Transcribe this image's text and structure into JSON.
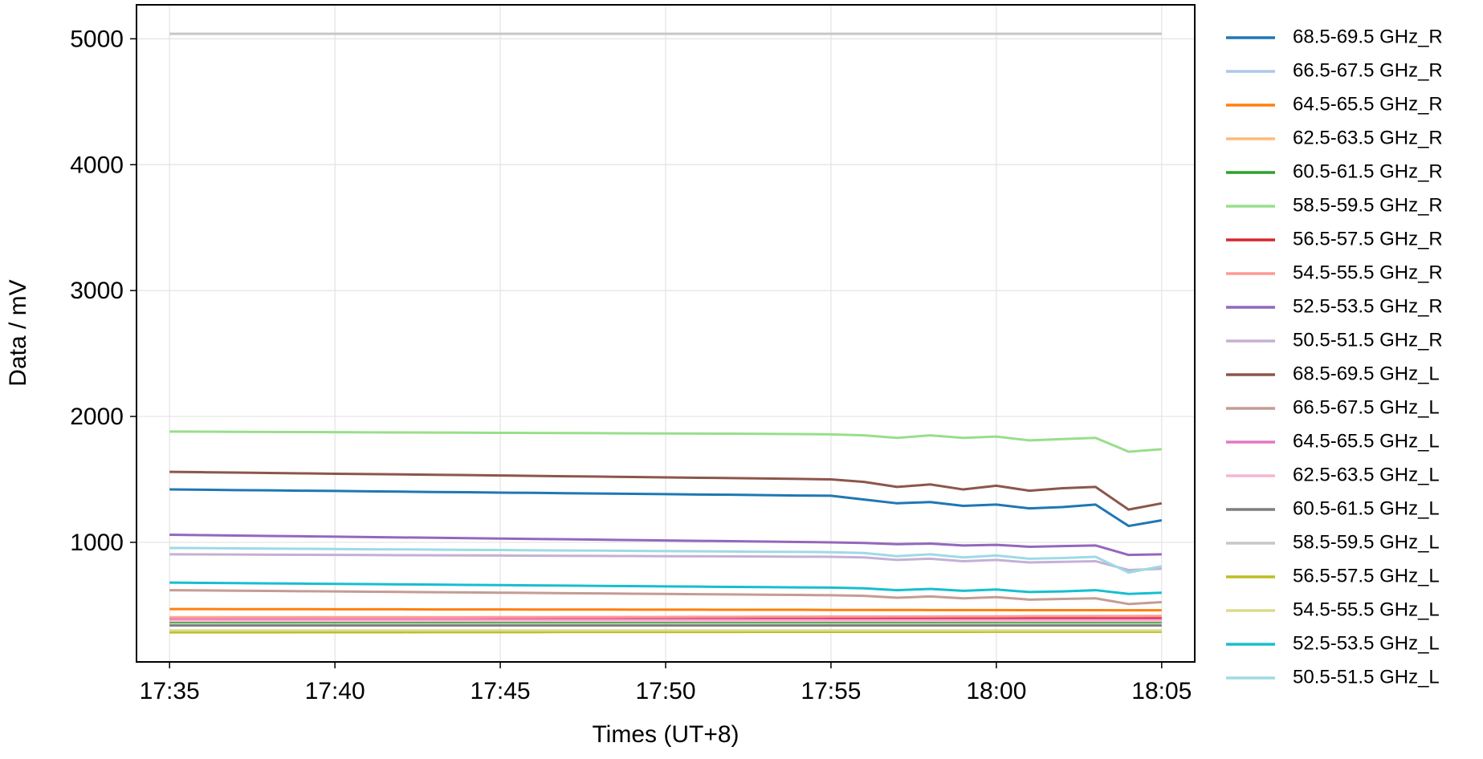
{
  "chart_data": {
    "type": "line",
    "x_label": "Times (UT+8)",
    "y_label": "Data / mV",
    "x": [
      "17:35",
      "17:36",
      "17:37",
      "17:38",
      "17:39",
      "17:40",
      "17:41",
      "17:42",
      "17:43",
      "17:44",
      "17:45",
      "17:46",
      "17:47",
      "17:48",
      "17:49",
      "17:50",
      "17:51",
      "17:52",
      "17:53",
      "17:54",
      "17:55",
      "17:56",
      "17:57",
      "17:58",
      "17:59",
      "18:00",
      "18:01",
      "18:02",
      "18:03",
      "18:04",
      "18:05"
    ],
    "xlim": [
      "17:34",
      "18:06"
    ],
    "xticks": [
      "17:35",
      "17:40",
      "17:45",
      "17:50",
      "17:55",
      "18:00",
      "18:05"
    ],
    "ylim": [
      50,
      5270
    ],
    "yticks": [
      1000,
      2000,
      3000,
      4000,
      5000
    ],
    "grid": true,
    "legend": "outside-right",
    "series": [
      {
        "name": "68.5-69.5 GHz_R",
        "color": "#1f77b4",
        "values": [
          1420,
          1418,
          1415,
          1413,
          1410,
          1408,
          1405,
          1403,
          1400,
          1398,
          1395,
          1393,
          1390,
          1388,
          1385,
          1383,
          1380,
          1378,
          1375,
          1372,
          1370,
          1340,
          1310,
          1320,
          1290,
          1300,
          1270,
          1280,
          1300,
          1130,
          1175
        ]
      },
      {
        "name": "66.5-67.5 GHz_R",
        "color": "#aec7e8",
        "values": [
          380,
          380,
          380,
          380,
          380,
          380,
          380,
          380,
          380,
          380,
          380,
          380,
          380,
          380,
          380,
          380,
          380,
          380,
          380,
          380,
          380,
          380,
          380,
          380,
          380,
          380,
          380,
          380,
          380,
          380,
          380
        ]
      },
      {
        "name": "64.5-65.5 GHz_R",
        "color": "#ff7f0e",
        "values": [
          470,
          470,
          469,
          469,
          469,
          468,
          468,
          468,
          467,
          467,
          467,
          466,
          466,
          466,
          465,
          465,
          465,
          464,
          464,
          464,
          463,
          463,
          463,
          462,
          462,
          462,
          461,
          461,
          461,
          460,
          460
        ]
      },
      {
        "name": "62.5-63.5 GHz_R",
        "color": "#ffbb78",
        "values": [
          405,
          405,
          405,
          405,
          405,
          405,
          405,
          405,
          405,
          405,
          405,
          405,
          405,
          405,
          405,
          405,
          405,
          405,
          405,
          405,
          405,
          405,
          405,
          405,
          405,
          405,
          405,
          405,
          405,
          405,
          405
        ]
      },
      {
        "name": "60.5-61.5 GHz_R",
        "color": "#2ca02c",
        "values": [
          365,
          365,
          365,
          365,
          365,
          365,
          365,
          365,
          365,
          365,
          365,
          365,
          365,
          365,
          365,
          365,
          365,
          365,
          365,
          365,
          365,
          365,
          365,
          365,
          365,
          365,
          365,
          365,
          365,
          365,
          365
        ]
      },
      {
        "name": "58.5-59.5 GHz_R",
        "color": "#98df8a",
        "values": [
          1880,
          1879,
          1878,
          1877,
          1876,
          1875,
          1874,
          1873,
          1872,
          1871,
          1870,
          1869,
          1868,
          1867,
          1866,
          1865,
          1864,
          1863,
          1862,
          1860,
          1858,
          1850,
          1830,
          1850,
          1830,
          1840,
          1810,
          1820,
          1830,
          1720,
          1740
        ]
      },
      {
        "name": "56.5-57.5 GHz_R",
        "color": "#d62728",
        "values": [
          395,
          395,
          395,
          395,
          395,
          395,
          395,
          395,
          395,
          395,
          395,
          395,
          395,
          395,
          395,
          395,
          395,
          395,
          395,
          395,
          395,
          395,
          395,
          395,
          395,
          395,
          395,
          395,
          395,
          395,
          395
        ]
      },
      {
        "name": "54.5-55.5 GHz_R",
        "color": "#ff9896",
        "values": [
          400,
          400,
          401,
          401,
          402,
          402,
          403,
          403,
          404,
          404,
          405,
          405,
          406,
          406,
          407,
          407,
          408,
          408,
          409,
          409,
          410,
          410,
          411,
          411,
          412,
          412,
          413,
          413,
          414,
          414,
          415
        ]
      },
      {
        "name": "52.5-53.5 GHz_R",
        "color": "#9467bd",
        "values": [
          1060,
          1057,
          1054,
          1051,
          1048,
          1045,
          1042,
          1039,
          1036,
          1033,
          1030,
          1027,
          1024,
          1021,
          1018,
          1015,
          1012,
          1009,
          1006,
          1003,
          1000,
          995,
          985,
          990,
          975,
          980,
          965,
          970,
          975,
          900,
          905
        ]
      },
      {
        "name": "50.5-51.5 GHz_R",
        "color": "#c5b0d5",
        "values": [
          905,
          904,
          903,
          902,
          901,
          900,
          899,
          898,
          897,
          896,
          895,
          894,
          893,
          892,
          891,
          890,
          889,
          888,
          887,
          886,
          885,
          880,
          860,
          870,
          850,
          860,
          840,
          845,
          850,
          780,
          790
        ]
      },
      {
        "name": "68.5-69.5 GHz_L",
        "color": "#8c564b",
        "values": [
          1560,
          1557,
          1554,
          1551,
          1548,
          1545,
          1542,
          1540,
          1537,
          1534,
          1531,
          1528,
          1525,
          1522,
          1519,
          1516,
          1513,
          1510,
          1507,
          1504,
          1500,
          1480,
          1440,
          1460,
          1420,
          1450,
          1410,
          1430,
          1440,
          1260,
          1310
        ]
      },
      {
        "name": "66.5-67.5 GHz_L",
        "color": "#c49c94",
        "values": [
          620,
          618,
          616,
          614,
          612,
          610,
          608,
          606,
          604,
          602,
          600,
          598,
          596,
          594,
          592,
          590,
          588,
          586,
          584,
          582,
          580,
          575,
          560,
          570,
          555,
          565,
          545,
          550,
          555,
          510,
          525
        ]
      },
      {
        "name": "64.5-65.5 GHz_L",
        "color": "#e377c2",
        "values": [
          385,
          385,
          385,
          385,
          385,
          385,
          385,
          385,
          385,
          385,
          385,
          385,
          385,
          385,
          385,
          385,
          385,
          385,
          385,
          385,
          385,
          385,
          385,
          385,
          385,
          385,
          385,
          385,
          385,
          385,
          385
        ]
      },
      {
        "name": "62.5-63.5 GHz_L",
        "color": "#f7b6d2",
        "values": [
          375,
          375,
          375,
          375,
          375,
          375,
          375,
          375,
          375,
          375,
          375,
          375,
          375,
          375,
          375,
          375,
          375,
          375,
          375,
          375,
          375,
          375,
          375,
          375,
          375,
          375,
          375,
          375,
          375,
          375,
          375
        ]
      },
      {
        "name": "60.5-61.5 GHz_L",
        "color": "#7f7f7f",
        "values": [
          340,
          340,
          340,
          340,
          340,
          340,
          340,
          340,
          340,
          340,
          340,
          340,
          340,
          340,
          340,
          340,
          340,
          340,
          340,
          340,
          340,
          340,
          340,
          340,
          340,
          340,
          340,
          340,
          340,
          340,
          340
        ]
      },
      {
        "name": "58.5-59.5 GHz_L",
        "color": "#c7c7c7",
        "values": [
          5040,
          5040,
          5040,
          5040,
          5040,
          5040,
          5040,
          5040,
          5040,
          5040,
          5040,
          5040,
          5040,
          5040,
          5040,
          5040,
          5040,
          5040,
          5040,
          5040,
          5040,
          5040,
          5040,
          5040,
          5040,
          5040,
          5040,
          5040,
          5040,
          5040,
          5040
        ]
      },
      {
        "name": "56.5-57.5 GHz_L",
        "color": "#bcbd22",
        "values": [
          285,
          285,
          285,
          285,
          286,
          286,
          286,
          286,
          287,
          287,
          287,
          287,
          288,
          288,
          288,
          288,
          288,
          288,
          289,
          289,
          289,
          289,
          289,
          289,
          289,
          290,
          290,
          290,
          290,
          290,
          290
        ]
      },
      {
        "name": "54.5-55.5 GHz_L",
        "color": "#dbdb8d",
        "values": [
          300,
          300,
          300,
          300,
          300,
          300,
          300,
          300,
          300,
          300,
          300,
          300,
          300,
          300,
          300,
          300,
          300,
          300,
          300,
          300,
          300,
          300,
          300,
          300,
          300,
          300,
          300,
          300,
          300,
          300,
          300
        ]
      },
      {
        "name": "52.5-53.5 GHz_L",
        "color": "#17becf",
        "values": [
          680,
          678,
          676,
          674,
          672,
          670,
          668,
          666,
          664,
          662,
          660,
          658,
          656,
          654,
          652,
          650,
          648,
          646,
          644,
          642,
          640,
          635,
          620,
          630,
          615,
          625,
          605,
          610,
          620,
          590,
          600
        ]
      },
      {
        "name": "50.5-51.5 GHz_L",
        "color": "#9edae5",
        "values": [
          955,
          954,
          952,
          950,
          949,
          947,
          945,
          944,
          942,
          940,
          939,
          937,
          935,
          934,
          932,
          930,
          929,
          927,
          925,
          924,
          922,
          915,
          890,
          905,
          880,
          895,
          870,
          875,
          885,
          760,
          810
        ]
      }
    ]
  }
}
